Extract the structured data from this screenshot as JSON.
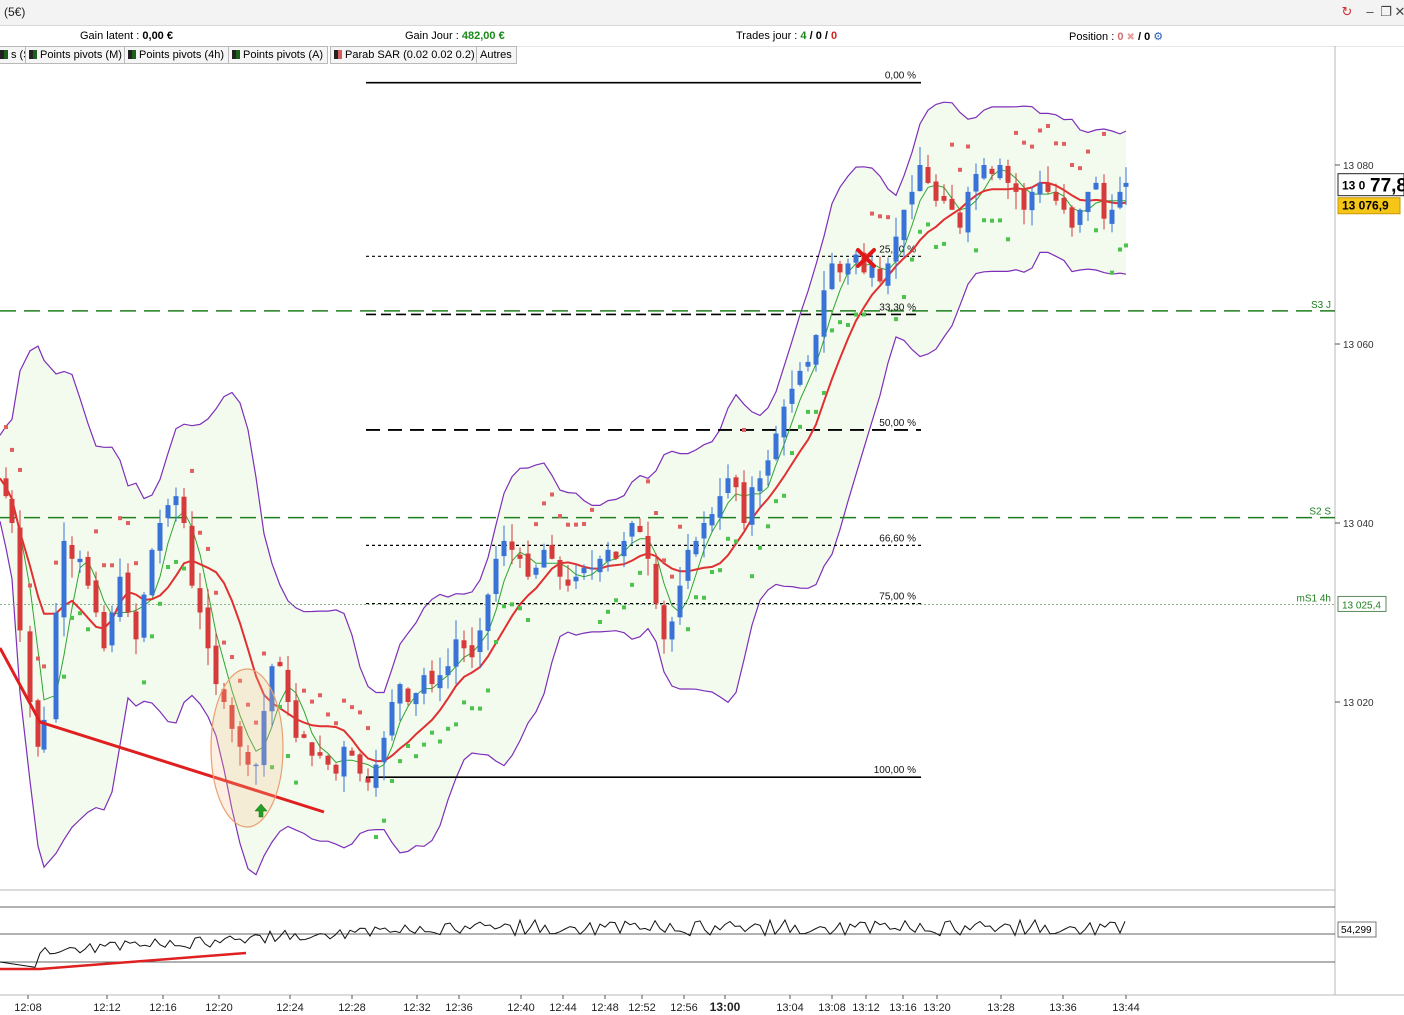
{
  "window": {
    "title": "(5€)"
  },
  "infobar": {
    "gain_latent_label": "Gain latent :",
    "gain_latent_value": "0,00 €",
    "gain_jour_label": "Gain Jour :",
    "gain_jour_value": "482,00 €",
    "trades_label": "Trades jour :",
    "trades_a": "4",
    "trades_b": "0",
    "trades_c": "0",
    "position_label": "Position :",
    "position_a": "0",
    "position_b": "/ 0"
  },
  "indicator_tabs": [
    {
      "label": "s (S)",
      "color": "#1a5f1a"
    },
    {
      "label": "Points pivots (M)",
      "color": "#1a5f1a"
    },
    {
      "label": "Points pivots (4h)",
      "color": "#1a5f1a"
    },
    {
      "label": "Points pivots (A)",
      "color": "#1a5f1a"
    },
    {
      "label": "Parab SAR (0.02 0.02 0.2)",
      "color": "#d45d5d"
    },
    {
      "label": "Autres",
      "color": ""
    }
  ],
  "chart_data": {
    "type": "candlestick",
    "price_axis": {
      "ticks": [
        "13 080",
        "13 060",
        "13 040",
        "13 020"
      ],
      "ylim": [
        12998,
        13092
      ]
    },
    "time_axis": {
      "ticks": [
        "12:08",
        "12:12",
        "12:16",
        "12:20",
        "12:24",
        "12:28",
        "12:32",
        "12:36",
        "12:40",
        "12:44",
        "12:48",
        "12:52",
        "12:56",
        "13:00",
        "13:04",
        "13:08",
        "13:12",
        "13:16",
        "13:20",
        "13:28",
        "13:36",
        "13:44"
      ]
    },
    "fibonacci": {
      "high": 13089.2,
      "low": 13011.6,
      "levels": [
        {
          "label": "0,00 %",
          "price": 13089.2
        },
        {
          "label": "25,00 %",
          "price": 13069.8
        },
        {
          "label": "33,30 %",
          "price": 13063.3
        },
        {
          "label": "50,00 %",
          "price": 13050.4
        },
        {
          "label": "66,60 %",
          "price": 13037.5
        },
        {
          "label": "75,00 %",
          "price": 13031.0
        },
        {
          "label": "100,00 %",
          "price": 13011.6
        }
      ]
    },
    "pivots": [
      {
        "label": "S3 J",
        "price": 13063.7
      },
      {
        "label": "S2 S",
        "price": 13040.6
      },
      {
        "label": "mS1 4h",
        "price": 13030.9
      }
    ],
    "current_price": "13 077,8",
    "current_price_big": "77,8",
    "current_price_small": "13 0",
    "last_close": "13 076,9",
    "pivot_value_label": "13 025,4",
    "oscillator": {
      "value_label": "54,299"
    },
    "colors": {
      "up": "#3a73d8",
      "down": "#d63a3a",
      "band": "#7e2fb8",
      "sar_up": "#4cc34c",
      "sar_down": "#e06060",
      "ma_red": "#e03030",
      "ma_green": "#2ea62e",
      "pivot": "#1f7f1f"
    }
  }
}
